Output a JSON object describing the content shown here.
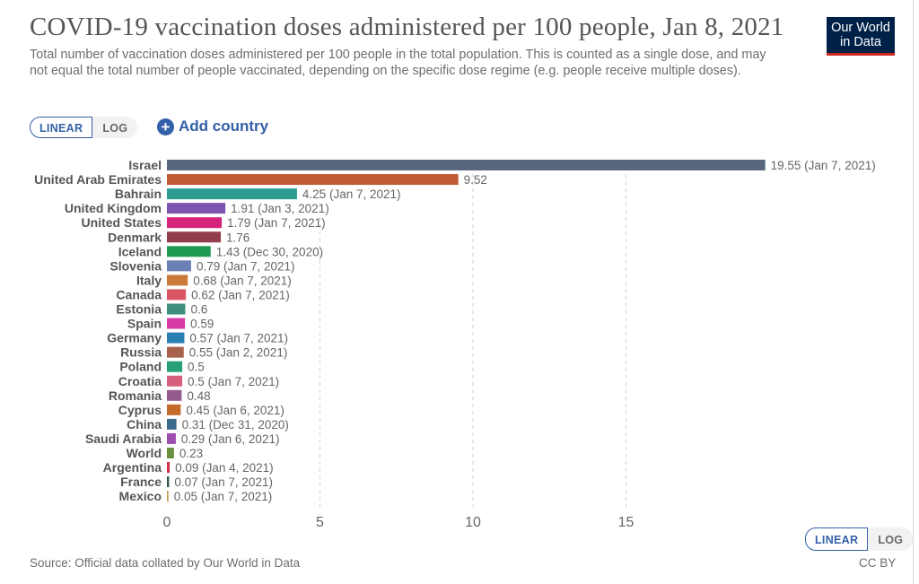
{
  "header": {
    "title": "COVID-19 vaccination doses administered per 100 people, Jan 8, 2021",
    "subtitle": "Total number of vaccination doses administered per 100 people in the total population. This is counted as a single dose, and may not equal the total number of people vaccinated, depending on the specific dose regime (e.g. people receive multiple doses)."
  },
  "logo": {
    "line1": "Our World",
    "line2": "in Data",
    "bg_color": "#002147",
    "accent_color": "#ce261e"
  },
  "controls": {
    "linear_label": "LINEAR",
    "log_label": "LOG",
    "add_country_label": "Add country"
  },
  "footer": {
    "source": "Source: Official data collated by Our World in Data",
    "license": "CC BY"
  },
  "chart_data": {
    "type": "bar",
    "orientation": "horizontal",
    "scale": "linear",
    "xlim": [
      0,
      20
    ],
    "xticks": [
      0,
      5,
      10,
      15
    ],
    "grid": "vertical dashed",
    "bars": [
      {
        "label": "Israel",
        "value": 19.55,
        "note": "(Jan 7, 2021)",
        "color": "#58677d"
      },
      {
        "label": "United Arab Emirates",
        "value": 9.52,
        "note": "",
        "color": "#c15a35"
      },
      {
        "label": "Bahrain",
        "value": 4.25,
        "note": "(Jan 7, 2021)",
        "color": "#2a9d8f"
      },
      {
        "label": "United Kingdom",
        "value": 1.91,
        "note": "(Jan 3, 2021)",
        "color": "#7d55b0"
      },
      {
        "label": "United States",
        "value": 1.79,
        "note": "(Jan 7, 2021)",
        "color": "#d6247d"
      },
      {
        "label": "Denmark",
        "value": 1.76,
        "note": "",
        "color": "#943d4d"
      },
      {
        "label": "Iceland",
        "value": 1.43,
        "note": "(Dec 30, 2020)",
        "color": "#1f9a53"
      },
      {
        "label": "Slovenia",
        "value": 0.79,
        "note": "(Jan 7, 2021)",
        "color": "#6b80b4"
      },
      {
        "label": "Italy",
        "value": 0.68,
        "note": "(Jan 7, 2021)",
        "color": "#cc7a3a"
      },
      {
        "label": "Canada",
        "value": 0.62,
        "note": "(Jan 7, 2021)",
        "color": "#db5664"
      },
      {
        "label": "Estonia",
        "value": 0.6,
        "note": "",
        "color": "#3f8f7f"
      },
      {
        "label": "Spain",
        "value": 0.59,
        "note": "",
        "color": "#d63aa7"
      },
      {
        "label": "Germany",
        "value": 0.57,
        "note": "(Jan 7, 2021)",
        "color": "#2b7fb1"
      },
      {
        "label": "Russia",
        "value": 0.55,
        "note": "(Jan 2, 2021)",
        "color": "#a8614a"
      },
      {
        "label": "Poland",
        "value": 0.5,
        "note": "",
        "color": "#27a079"
      },
      {
        "label": "Croatia",
        "value": 0.5,
        "note": "(Jan 7, 2021)",
        "color": "#d65f7d"
      },
      {
        "label": "Romania",
        "value": 0.48,
        "note": "",
        "color": "#935a8c"
      },
      {
        "label": "Cyprus",
        "value": 0.45,
        "note": "(Jan 6, 2021)",
        "color": "#c46b2b"
      },
      {
        "label": "China",
        "value": 0.31,
        "note": "(Dec 31, 2020)",
        "color": "#3a6a8c"
      },
      {
        "label": "Saudi Arabia",
        "value": 0.29,
        "note": "(Jan 6, 2021)",
        "color": "#9d4fb0"
      },
      {
        "label": "World",
        "value": 0.23,
        "note": "",
        "color": "#6a8f3e"
      },
      {
        "label": "Argentina",
        "value": 0.09,
        "note": "(Jan 4, 2021)",
        "color": "#d42c4b"
      },
      {
        "label": "France",
        "value": 0.07,
        "note": "(Jan 7, 2021)",
        "color": "#2e5a3e"
      },
      {
        "label": "Mexico",
        "value": 0.05,
        "note": "(Jan 7, 2021)",
        "color": "#c29a50"
      }
    ]
  }
}
